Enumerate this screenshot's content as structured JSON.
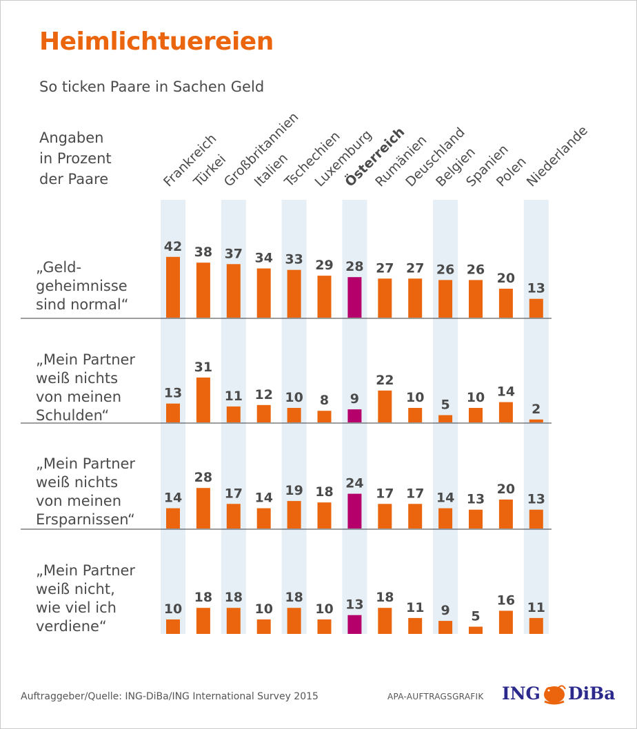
{
  "title": "Heimlichtuereien",
  "subtitle": "So ticken Paare in Sachen Geld",
  "unit_note": "Angaben\nin Prozent\nder Paare",
  "footer": {
    "source": "Auftraggeber/Quelle: ING-DiBa/ING International Survey 2015",
    "credit": "APA-AUFTRAGSGRAFIK",
    "logo_left": "ING",
    "logo_right": "DiBa",
    "logo_icon": "lion-icon"
  },
  "colors": {
    "bar": "#ea650d",
    "highlight_bar": "#b5006c",
    "column_shade": "#e6eff5",
    "text": "#4a4a4a",
    "title": "#ea650d",
    "divider": "#3a3a3a"
  },
  "chart_data": {
    "type": "bar",
    "layout": "small-multiples",
    "orientation": "vertical",
    "categories": [
      "Frankreich",
      "Türkei",
      "Großbritannien",
      "Italien",
      "Tschechien",
      "Luxemburg",
      "Österreich",
      "Rumänien",
      "Deuschland",
      "Belgien",
      "Spanien",
      "Polen",
      "Niederlande"
    ],
    "highlight_category": "Österreich",
    "shaded_categories": [
      "Frankreich",
      "Großbritannien",
      "Tschechien",
      "Österreich",
      "Belgien",
      "Niederlande"
    ],
    "value_unit": "%",
    "grid": false,
    "series": [
      {
        "name": "„Geld-\ngeheimnisse\nsind normal“",
        "values": [
          42,
          38,
          37,
          34,
          33,
          29,
          28,
          27,
          27,
          26,
          26,
          20,
          13
        ]
      },
      {
        "name": "„Mein Partner\nweiß nichts\nvon meinen\nSchulden“",
        "values": [
          13,
          31,
          11,
          12,
          10,
          8,
          9,
          22,
          10,
          5,
          10,
          14,
          2
        ]
      },
      {
        "name": "„Mein Partner\nweiß nichts\nvon meinen\nErsparnissen“",
        "values": [
          14,
          28,
          17,
          14,
          19,
          18,
          24,
          17,
          17,
          14,
          13,
          20,
          13
        ]
      },
      {
        "name": "„Mein Partner\nweiß nicht,\nwie viel ich\nverdiene“",
        "values": [
          10,
          18,
          18,
          10,
          18,
          10,
          13,
          18,
          11,
          9,
          5,
          16,
          11
        ]
      }
    ]
  }
}
